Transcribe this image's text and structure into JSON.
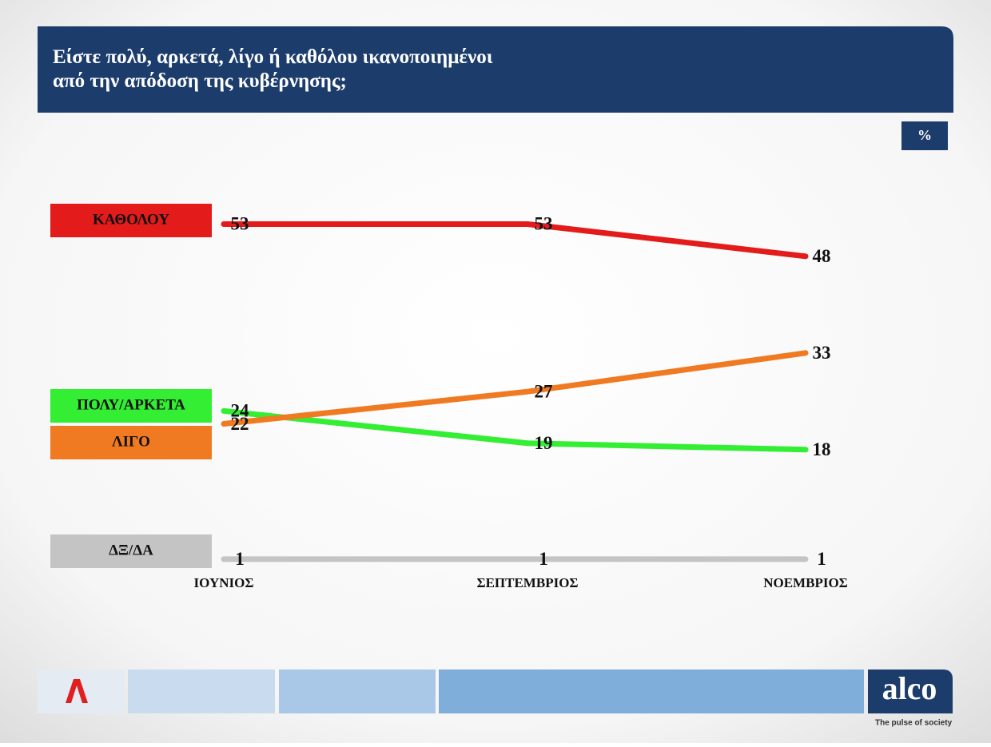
{
  "chart_data": {
    "type": "line",
    "title": "Είστε πολύ, αρκετά, λίγο ή καθόλου ικανοποιημένοι από την απόδοση της κυβέρνησης;",
    "unit_label": "%",
    "categories": [
      "ΙΟΥΝΙΟΣ",
      "ΣΕΠΤΕΜΒΡΙΟΣ",
      "ΝΟΕΜΒΡΙΟΣ"
    ],
    "series": [
      {
        "name": "ΚΑΘΟΛΟΥ",
        "color": "#e31b1b",
        "values": [
          53,
          53,
          48
        ]
      },
      {
        "name": "ΠΟΛΥ/ΑΡΚΕΤΑ",
        "color": "#33ee33",
        "values": [
          24,
          19,
          18
        ]
      },
      {
        "name": "ΛΙΓΟ",
        "color": "#f07a22",
        "values": [
          22,
          27,
          33
        ]
      },
      {
        "name": "ΔΞ/ΔΑ",
        "color": "#c4c4c4",
        "values": [
          1,
          1,
          1
        ]
      }
    ],
    "ylim": [
      0,
      60
    ],
    "brand": "alco",
    "tagline": "The pulse of society"
  }
}
